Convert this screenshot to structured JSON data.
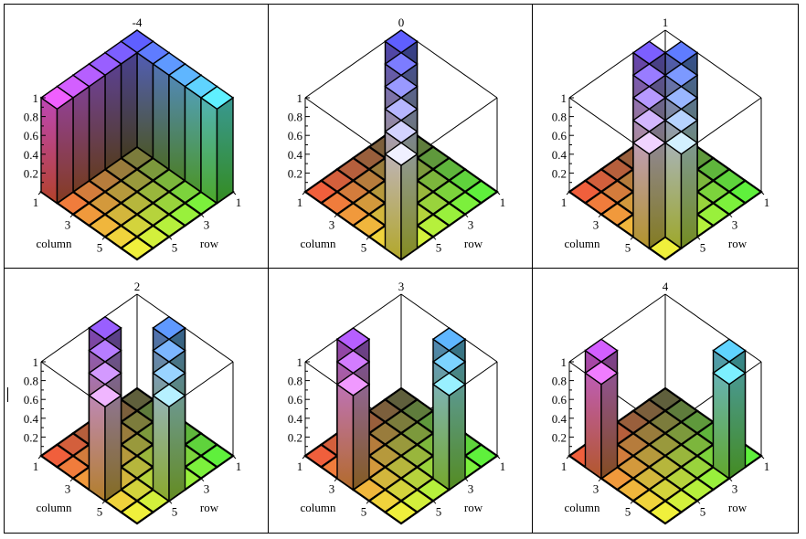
{
  "chart_data": [
    {
      "type": "bar3d",
      "title": "-4",
      "xlabel": "column",
      "ylabel": "row",
      "zticks": [
        "0.2",
        "0.4",
        "0.6",
        "0.8",
        "1"
      ],
      "column_ticks": [
        "1",
        "3",
        "5"
      ],
      "row_ticks": [
        "1",
        "3",
        "5"
      ],
      "zlim": [
        0,
        1
      ],
      "matrix": [
        [
          1,
          1,
          1,
          1,
          1,
          1
        ],
        [
          1,
          0,
          0,
          0,
          0,
          0
        ],
        [
          1,
          0,
          0,
          0,
          0,
          0
        ],
        [
          1,
          0,
          0,
          0,
          0,
          0
        ],
        [
          1,
          0,
          0,
          0,
          0,
          0
        ],
        [
          1,
          0,
          0,
          0,
          0,
          0
        ]
      ]
    },
    {
      "type": "bar3d",
      "title": "0",
      "xlabel": "column",
      "ylabel": "row",
      "zticks": [
        "0.2",
        "0.4",
        "0.6",
        "0.8",
        "1"
      ],
      "column_ticks": [
        "1",
        "3",
        "5"
      ],
      "row_ticks": [
        "1",
        "3",
        "5"
      ],
      "zlim": [
        0,
        1
      ],
      "matrix": [
        [
          1,
          0,
          0,
          0,
          0,
          0
        ],
        [
          0,
          1,
          0,
          0,
          0,
          0
        ],
        [
          0,
          0,
          1,
          0,
          0,
          0
        ],
        [
          0,
          0,
          0,
          1,
          0,
          0
        ],
        [
          0,
          0,
          0,
          0,
          1,
          0
        ],
        [
          0,
          0,
          0,
          0,
          0,
          1
        ]
      ]
    },
    {
      "type": "bar3d",
      "title": "1",
      "xlabel": "column",
      "ylabel": "row",
      "zticks": [
        "0.2",
        "0.4",
        "0.6",
        "0.8",
        "1"
      ],
      "column_ticks": [
        "1",
        "3",
        "5"
      ],
      "row_ticks": [
        "1",
        "3",
        "5"
      ],
      "zlim": [
        0,
        1
      ],
      "matrix": [
        [
          0,
          1,
          0,
          0,
          0,
          0
        ],
        [
          1,
          0,
          1,
          0,
          0,
          0
        ],
        [
          0,
          1,
          0,
          1,
          0,
          0
        ],
        [
          0,
          0,
          1,
          0,
          1,
          0
        ],
        [
          0,
          0,
          0,
          1,
          0,
          1
        ],
        [
          0,
          0,
          0,
          0,
          1,
          0
        ]
      ]
    },
    {
      "type": "bar3d",
      "title": "2",
      "xlabel": "column",
      "ylabel": "row",
      "zticks": [
        "0.2",
        "0.4",
        "0.6",
        "0.8",
        "1"
      ],
      "column_ticks": [
        "1",
        "3",
        "5"
      ],
      "row_ticks": [
        "1",
        "3",
        "5"
      ],
      "zlim": [
        0,
        1
      ],
      "matrix": [
        [
          0,
          0,
          1,
          0,
          0,
          0
        ],
        [
          0,
          0,
          0,
          1,
          0,
          0
        ],
        [
          1,
          0,
          0,
          0,
          1,
          0
        ],
        [
          0,
          1,
          0,
          0,
          0,
          1
        ],
        [
          0,
          0,
          1,
          0,
          0,
          0
        ],
        [
          0,
          0,
          0,
          1,
          0,
          0
        ]
      ]
    },
    {
      "type": "bar3d",
      "title": "3",
      "xlabel": "column",
      "ylabel": "row",
      "zticks": [
        "0.2",
        "0.4",
        "0.6",
        "0.8",
        "1"
      ],
      "column_ticks": [
        "1",
        "3",
        "5"
      ],
      "row_ticks": [
        "1",
        "3",
        "5"
      ],
      "zlim": [
        0,
        1
      ],
      "matrix": [
        [
          0,
          0,
          0,
          1,
          0,
          0
        ],
        [
          0,
          0,
          0,
          0,
          1,
          0
        ],
        [
          0,
          0,
          0,
          0,
          0,
          1
        ],
        [
          1,
          0,
          0,
          0,
          0,
          0
        ],
        [
          0,
          1,
          0,
          0,
          0,
          0
        ],
        [
          0,
          0,
          1,
          0,
          0,
          0
        ]
      ]
    },
    {
      "type": "bar3d",
      "title": "4",
      "xlabel": "column",
      "ylabel": "row",
      "zticks": [
        "0.2",
        "0.4",
        "0.6",
        "0.8",
        "1"
      ],
      "column_ticks": [
        "1",
        "3",
        "5"
      ],
      "row_ticks": [
        "1",
        "3",
        "5"
      ],
      "zlim": [
        0,
        1
      ],
      "matrix": [
        [
          0,
          0,
          0,
          0,
          1,
          0
        ],
        [
          0,
          0,
          0,
          0,
          0,
          1
        ],
        [
          0,
          0,
          0,
          0,
          0,
          0
        ],
        [
          0,
          0,
          0,
          0,
          0,
          0
        ],
        [
          1,
          0,
          0,
          0,
          0,
          0
        ],
        [
          0,
          1,
          0,
          0,
          0,
          0
        ]
      ]
    }
  ]
}
